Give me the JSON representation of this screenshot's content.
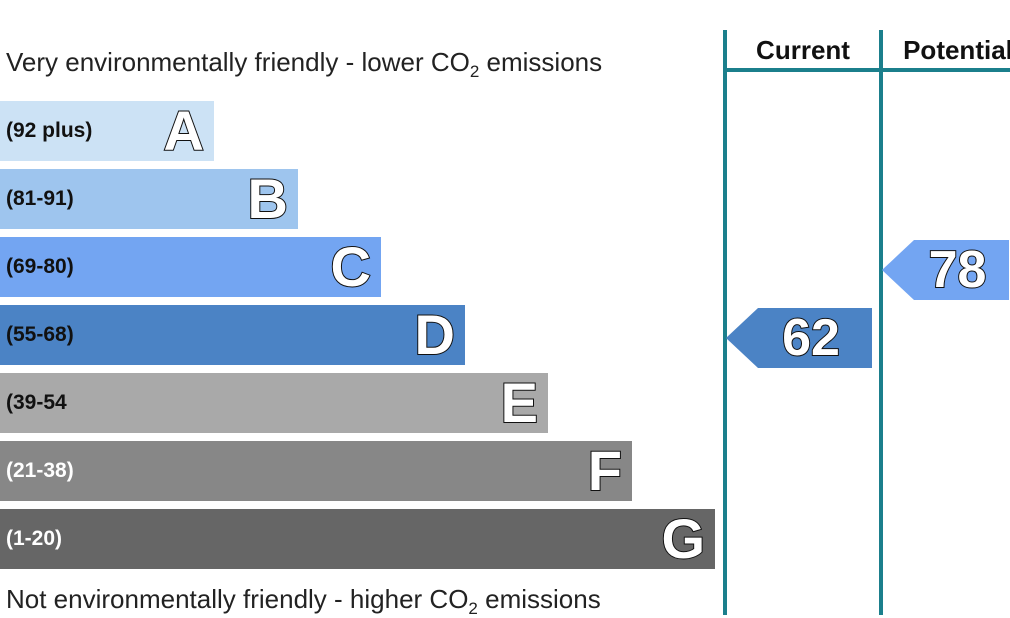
{
  "chart_data": {
    "type": "bar",
    "top_caption": {
      "text": "Very environmentally friendly - lower CO",
      "sub": "2",
      "tail": " emissions"
    },
    "bottom_caption": {
      "text": "Not environmentally friendly - higher CO",
      "sub": "2",
      "tail": " emissions"
    },
    "bands": [
      {
        "range": "(92 plus)",
        "letter": "A",
        "color": "#cce2f5",
        "text_color": "#111111"
      },
      {
        "range": "(81-91)",
        "letter": "B",
        "color": "#9ec5ee",
        "text_color": "#111111"
      },
      {
        "range": "(69-80)",
        "letter": "C",
        "color": "#73a5f2",
        "text_color": "#111111"
      },
      {
        "range": "(55-68)",
        "letter": "D",
        "color": "#4b83c5",
        "text_color": "#111111"
      },
      {
        "range": "(39-54",
        "letter": "E",
        "color": "#a9a9a9",
        "text_color": "#111111"
      },
      {
        "range": "(21-38)",
        "letter": "F",
        "color": "#878787",
        "text_color": "#ffffff"
      },
      {
        "range": "(1-20)",
        "letter": "G",
        "color": "#666666",
        "text_color": "#ffffff"
      }
    ],
    "columns": {
      "current": {
        "label": "Current",
        "value": "62",
        "band": "D",
        "color": "#4b83c5"
      },
      "potential": {
        "label": "Potential",
        "value": "78",
        "band": "C",
        "color": "#73a5f2"
      }
    },
    "rule_color": "#1b7f8c"
  }
}
